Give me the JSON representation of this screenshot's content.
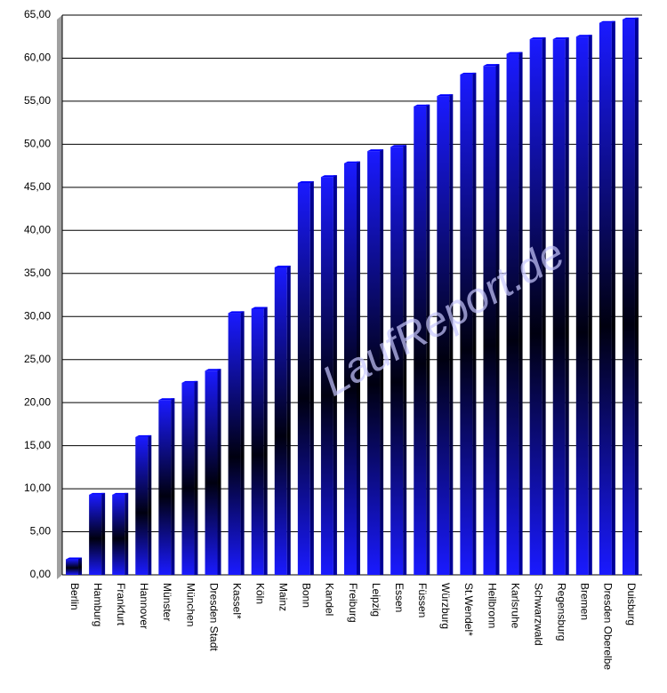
{
  "chart_data": {
    "type": "bar",
    "categories": [
      "Berlin",
      "Hamburg",
      "Frankfurt",
      "Hannover",
      "Münster",
      "München",
      "Dresden Stadt",
      "Kassel*",
      "Köln",
      "Mainz",
      "Bonn",
      "Kandel",
      "Freiburg",
      "Leipzig",
      "Essen",
      "Füssen",
      "Würzburg",
      "St.Wendel*",
      "Heilbronn",
      "Karlsruhe",
      "Schwarzwald",
      "Regensburg",
      "Bremen",
      "Dresden Oberelbe",
      "Duisburg"
    ],
    "values": [
      1.8,
      9.3,
      9.3,
      16.0,
      20.3,
      22.3,
      23.7,
      30.4,
      30.9,
      35.7,
      45.5,
      46.2,
      47.8,
      49.2,
      49.7,
      54.4,
      55.6,
      58.1,
      59.1,
      60.5,
      62.2,
      62.2,
      62.5,
      64.1,
      64.5
    ],
    "color": "#0000ff",
    "ylim": [
      0,
      65
    ],
    "yticks": [
      {
        "value": 0,
        "label": "0,00"
      },
      {
        "value": 5,
        "label": "5,00"
      },
      {
        "value": 10,
        "label": "10,00"
      },
      {
        "value": 15,
        "label": "15,00"
      },
      {
        "value": 20,
        "label": "20,00"
      },
      {
        "value": 25,
        "label": "25,00"
      },
      {
        "value": 30,
        "label": "30,00"
      },
      {
        "value": 35,
        "label": "35,00"
      },
      {
        "value": 40,
        "label": "40,00"
      },
      {
        "value": 45,
        "label": "45,00"
      },
      {
        "value": 50,
        "label": "50,00"
      },
      {
        "value": 55,
        "label": "55,00"
      },
      {
        "value": 60,
        "label": "60,00"
      },
      {
        "value": 65,
        "label": "65,00"
      }
    ],
    "grid": true,
    "watermark": "LaufReport.de"
  }
}
